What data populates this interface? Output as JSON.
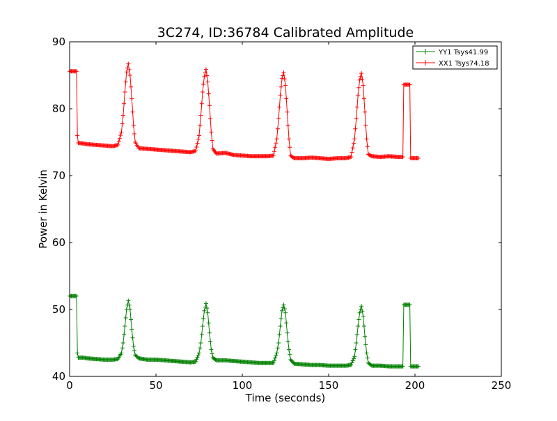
{
  "chart_data": {
    "type": "line",
    "title": "3C274, ID:36784 Calibrated Amplitude",
    "xlabel": "Time (seconds)",
    "ylabel": "Power in Kelvin",
    "xlim": [
      0,
      250
    ],
    "ylim": [
      40,
      90
    ],
    "xticks": [
      "0",
      "50",
      "100",
      "150",
      "200",
      "250"
    ],
    "yticks": [
      "40",
      "50",
      "60",
      "70",
      "80",
      "90"
    ],
    "grid": false,
    "legend": "top-right",
    "marker": "+",
    "series": [
      {
        "name": "YY1 Tsys41.99",
        "color": "#008000",
        "points": [
          [
            0,
            52.0
          ],
          [
            1,
            52.0
          ],
          [
            2,
            52.0
          ],
          [
            3,
            52.0
          ],
          [
            4,
            52.0
          ],
          [
            4.5,
            43.5
          ],
          [
            5,
            42.8
          ],
          [
            8,
            42.8
          ],
          [
            10,
            42.7
          ],
          [
            15,
            42.6
          ],
          [
            20,
            42.5
          ],
          [
            25,
            42.5
          ],
          [
            28,
            42.6
          ],
          [
            30,
            43.5
          ],
          [
            31,
            45.0
          ],
          [
            32,
            47.5
          ],
          [
            33,
            50.0
          ],
          [
            34,
            51.3
          ],
          [
            35,
            50.0
          ],
          [
            36,
            47.0
          ],
          [
            37,
            44.5
          ],
          [
            38,
            43.2
          ],
          [
            40,
            42.7
          ],
          [
            45,
            42.5
          ],
          [
            50,
            42.5
          ],
          [
            55,
            42.4
          ],
          [
            60,
            42.3
          ],
          [
            65,
            42.2
          ],
          [
            70,
            42.1
          ],
          [
            73,
            42.2
          ],
          [
            75,
            43.5
          ],
          [
            76,
            45.0
          ],
          [
            77,
            47.5
          ],
          [
            78,
            49.8
          ],
          [
            79,
            50.9
          ],
          [
            80,
            49.5
          ],
          [
            81,
            46.5
          ],
          [
            82,
            44.0
          ],
          [
            83,
            42.8
          ],
          [
            85,
            42.4
          ],
          [
            90,
            42.4
          ],
          [
            95,
            42.3
          ],
          [
            100,
            42.2
          ],
          [
            105,
            42.1
          ],
          [
            110,
            42.0
          ],
          [
            115,
            42.0
          ],
          [
            118,
            42.0
          ],
          [
            120,
            43.5
          ],
          [
            121,
            45.0
          ],
          [
            122,
            47.5
          ],
          [
            123,
            49.8
          ],
          [
            124,
            50.7
          ],
          [
            125,
            49.5
          ],
          [
            126,
            46.5
          ],
          [
            127,
            44.0
          ],
          [
            128,
            42.5
          ],
          [
            130,
            41.9
          ],
          [
            135,
            41.8
          ],
          [
            140,
            41.7
          ],
          [
            145,
            41.7
          ],
          [
            150,
            41.6
          ],
          [
            155,
            41.6
          ],
          [
            160,
            41.6
          ],
          [
            163,
            41.7
          ],
          [
            165,
            43.0
          ],
          [
            166,
            45.0
          ],
          [
            167,
            47.5
          ],
          [
            168,
            49.5
          ],
          [
            169,
            50.5
          ],
          [
            170,
            49.0
          ],
          [
            171,
            46.0
          ],
          [
            172,
            43.5
          ],
          [
            173,
            42.0
          ],
          [
            175,
            41.6
          ],
          [
            180,
            41.6
          ],
          [
            185,
            41.5
          ],
          [
            190,
            41.5
          ],
          [
            193,
            41.5
          ],
          [
            193.5,
            50.7
          ],
          [
            196,
            50.7
          ],
          [
            197,
            50.7
          ],
          [
            197.5,
            41.5
          ],
          [
            200,
            41.5
          ],
          [
            202,
            41.5
          ]
        ]
      },
      {
        "name": "XX1 Tsys74.18",
        "color": "#ff0000",
        "points": [
          [
            0,
            85.6
          ],
          [
            1,
            85.6
          ],
          [
            2,
            85.6
          ],
          [
            3,
            85.6
          ],
          [
            4,
            85.6
          ],
          [
            4.5,
            76.0
          ],
          [
            5,
            74.9
          ],
          [
            8,
            74.8
          ],
          [
            10,
            74.7
          ],
          [
            15,
            74.6
          ],
          [
            20,
            74.5
          ],
          [
            25,
            74.4
          ],
          [
            28,
            74.6
          ],
          [
            30,
            76.5
          ],
          [
            31,
            79.0
          ],
          [
            32,
            82.5
          ],
          [
            33,
            85.5
          ],
          [
            34,
            86.7
          ],
          [
            35,
            85.0
          ],
          [
            36,
            81.5
          ],
          [
            37,
            77.5
          ],
          [
            38,
            75.0
          ],
          [
            40,
            74.1
          ],
          [
            45,
            74.0
          ],
          [
            50,
            73.9
          ],
          [
            55,
            73.8
          ],
          [
            60,
            73.7
          ],
          [
            65,
            73.6
          ],
          [
            70,
            73.5
          ],
          [
            73,
            73.7
          ],
          [
            75,
            76.0
          ],
          [
            76,
            79.0
          ],
          [
            77,
            82.5
          ],
          [
            78,
            84.8
          ],
          [
            79,
            85.9
          ],
          [
            80,
            84.0
          ],
          [
            81,
            80.5
          ],
          [
            82,
            76.5
          ],
          [
            83,
            74.0
          ],
          [
            85,
            73.3
          ],
          [
            90,
            73.4
          ],
          [
            95,
            73.1
          ],
          [
            100,
            73.0
          ],
          [
            105,
            72.9
          ],
          [
            110,
            72.9
          ],
          [
            115,
            72.9
          ],
          [
            118,
            73.0
          ],
          [
            120,
            75.5
          ],
          [
            121,
            78.5
          ],
          [
            122,
            82.0
          ],
          [
            123,
            84.5
          ],
          [
            124,
            85.4
          ],
          [
            125,
            83.5
          ],
          [
            126,
            79.5
          ],
          [
            127,
            75.5
          ],
          [
            128,
            73.0
          ],
          [
            130,
            72.6
          ],
          [
            135,
            72.6
          ],
          [
            140,
            72.7
          ],
          [
            145,
            72.6
          ],
          [
            150,
            72.5
          ],
          [
            155,
            72.6
          ],
          [
            160,
            72.6
          ],
          [
            163,
            72.8
          ],
          [
            165,
            75.5
          ],
          [
            166,
            78.5
          ],
          [
            167,
            82.0
          ],
          [
            168,
            84.3
          ],
          [
            169,
            85.3
          ],
          [
            170,
            83.5
          ],
          [
            171,
            79.5
          ],
          [
            172,
            75.5
          ],
          [
            173,
            73.2
          ],
          [
            175,
            72.9
          ],
          [
            180,
            72.8
          ],
          [
            185,
            72.9
          ],
          [
            190,
            72.8
          ],
          [
            193,
            72.8
          ],
          [
            193.5,
            83.6
          ],
          [
            196,
            83.6
          ],
          [
            197,
            83.6
          ],
          [
            197.5,
            72.6
          ],
          [
            200,
            72.6
          ],
          [
            202,
            72.6
          ]
        ]
      }
    ]
  }
}
